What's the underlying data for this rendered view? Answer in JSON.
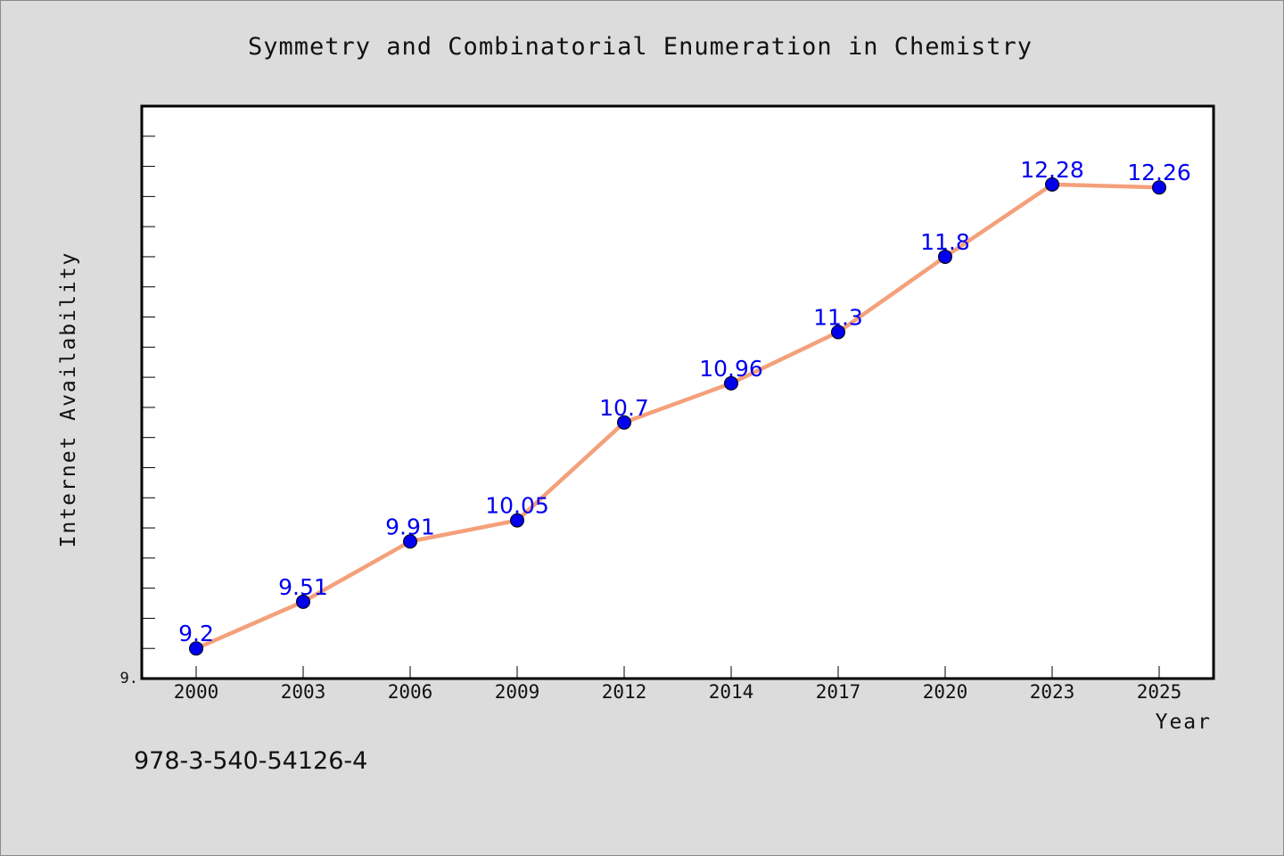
{
  "chart_data": {
    "type": "line",
    "title": "Symmetry and Combinatorial Enumeration in Chemistry",
    "xlabel": "Year",
    "ylabel": "Internet Availability",
    "categories": [
      "2000",
      "2003",
      "2006",
      "2009",
      "2012",
      "2014",
      "2017",
      "2020",
      "2023",
      "2025"
    ],
    "series": [
      {
        "values": [
          9.2,
          9.51,
          9.91,
          10.05,
          10.7,
          10.96,
          11.3,
          11.8,
          12.28,
          12.26
        ],
        "data_labels": [
          "9.2",
          "9.51",
          "9.91",
          "10.05",
          "10.7",
          "10.96",
          "11.3",
          "11.8",
          "12.28",
          "12.26"
        ]
      }
    ],
    "ylim": [
      9.0,
      12.8
    ],
    "y_tick_label": "9.",
    "grid": false,
    "legend": "none",
    "line_color": "#f4a07a",
    "marker_color": "#0000ee",
    "label_color": "#0000ee",
    "plot_background": "#ffffff",
    "page_background": "#dcdcdc"
  },
  "footer_text": "978-3-540-54126-4"
}
